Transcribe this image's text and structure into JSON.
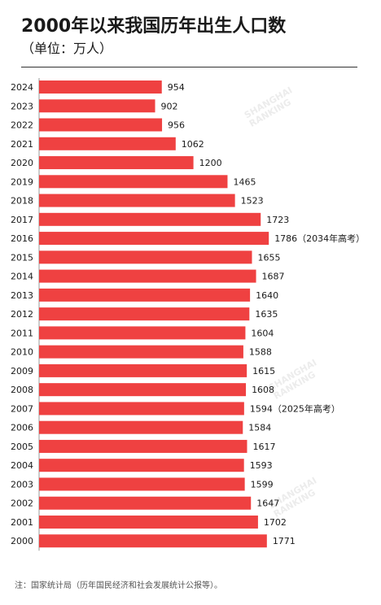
{
  "header": {
    "title": "2000年以来我国历年出生人口数",
    "subtitle": "（单位：万人）"
  },
  "footer": {
    "note": "注：国家统计局（历年国民经济和社会发展统计公报等）。"
  },
  "colors": {
    "bar": "#ef4141",
    "text": "#1a1a1a",
    "axis": "#999999"
  },
  "chart_data": {
    "type": "bar",
    "orientation": "horizontal",
    "categories": [
      "2024",
      "2023",
      "2022",
      "2021",
      "2020",
      "2019",
      "2018",
      "2017",
      "2016",
      "2015",
      "2014",
      "2013",
      "2012",
      "2011",
      "2010",
      "2009",
      "2008",
      "2007",
      "2006",
      "2005",
      "2004",
      "2003",
      "2002",
      "2001",
      "2000"
    ],
    "values": [
      954,
      902,
      956,
      1062,
      1200,
      1465,
      1523,
      1723,
      1786,
      1655,
      1687,
      1640,
      1635,
      1604,
      1588,
      1615,
      1608,
      1594,
      1584,
      1617,
      1593,
      1599,
      1647,
      1702,
      1771
    ],
    "value_labels": [
      "954",
      "902",
      "956",
      "1062",
      "1200",
      "1465",
      "1523",
      "1723",
      "1786（2034年高考）",
      "1655",
      "1687",
      "1640",
      "1635",
      "1604",
      "1588",
      "1615",
      "1608",
      "1594（2025年高考）",
      "1584",
      "1617",
      "1593",
      "1599",
      "1647",
      "1702",
      "1771"
    ],
    "xlim": [
      0,
      1800
    ],
    "grid": false,
    "legend": "none"
  }
}
